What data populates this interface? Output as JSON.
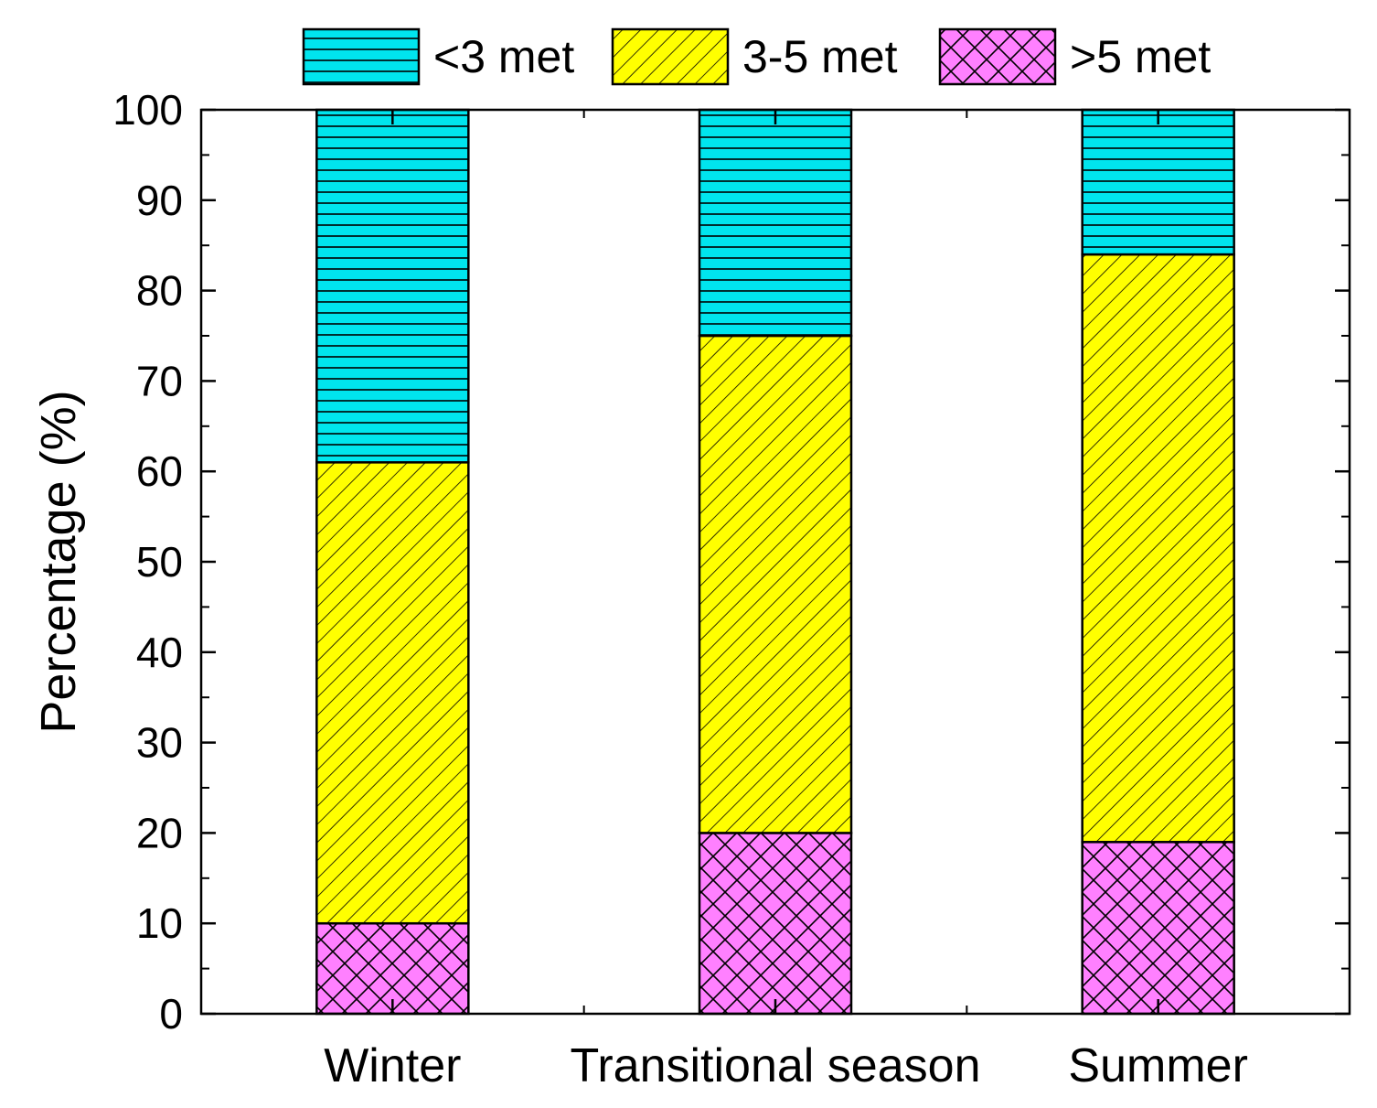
{
  "chart_data": {
    "type": "bar",
    "stacked": true,
    "title": "",
    "xlabel": "",
    "ylabel": "Percentage (%)",
    "ylim": [
      0,
      100
    ],
    "yticks": [
      0,
      10,
      20,
      30,
      40,
      50,
      60,
      70,
      80,
      90,
      100
    ],
    "categories": [
      "Winter",
      "Transitional season",
      "Summer"
    ],
    "series": [
      {
        "name": ">5 met",
        "values": [
          10,
          20,
          19
        ],
        "color": "#ff80ff",
        "pattern": "crosshatch"
      },
      {
        "name": "3-5 met",
        "values": [
          51,
          55,
          65
        ],
        "color": "#ffff00",
        "pattern": "diagonal"
      },
      {
        "name": "<3 met",
        "values": [
          39,
          25,
          16
        ],
        "color": "#00e5ee",
        "pattern": "horizontal"
      }
    ],
    "legend": {
      "placement": "top",
      "order": [
        "<3 met",
        "3-5 met",
        ">5 met"
      ]
    }
  }
}
